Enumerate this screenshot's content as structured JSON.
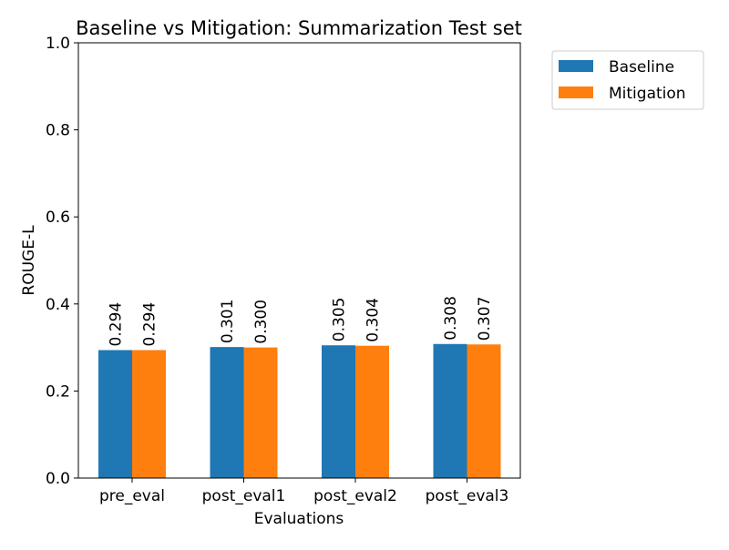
{
  "chart_data": {
    "type": "bar",
    "title": "Baseline vs Mitigation: Summarization Test set",
    "xlabel": "Evaluations",
    "ylabel": "ROUGE-L",
    "categories": [
      "pre_eval",
      "post_eval1",
      "post_eval2",
      "post_eval3"
    ],
    "series": [
      {
        "name": "Baseline",
        "color": "#1f77b4",
        "values": [
          0.294,
          0.301,
          0.305,
          0.308
        ],
        "labels": [
          "0.294",
          "0.301",
          "0.305",
          "0.308"
        ]
      },
      {
        "name": "Mitigation",
        "color": "#ff7f0e",
        "values": [
          0.294,
          0.3,
          0.304,
          0.307
        ],
        "labels": [
          "0.294",
          "0.300",
          "0.304",
          "0.307"
        ]
      }
    ],
    "ylim": [
      0,
      1.0
    ],
    "yticks": [
      0.0,
      0.2,
      0.4,
      0.6,
      0.8,
      1.0
    ],
    "ytick_labels": [
      "0.0",
      "0.2",
      "0.4",
      "0.6",
      "0.8",
      "1.0"
    ],
    "grid": false,
    "legend_position": "upper right, outside plot area"
  }
}
